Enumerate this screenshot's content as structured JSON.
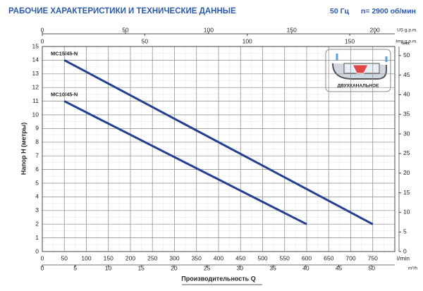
{
  "chart_data": {
    "type": "line",
    "title": "РАБОЧИЕ ХАРАКТЕРИСТИКИ И ТЕХНИЧЕСКИЕ ДАННЫЕ",
    "frequency": "50 Гц",
    "speed": "n= 2900 об/мин",
    "x_label": "Производительность Q",
    "y_label": "Напор H (метры)",
    "x_unit": "l/min",
    "inset_label": "ДВУХКАНАЛЬНОЕ",
    "xlim": [
      0,
      800
    ],
    "xticks": [
      0,
      50,
      100,
      150,
      200,
      250,
      300,
      350,
      400,
      450,
      500,
      550,
      600,
      650,
      700,
      750
    ],
    "ylim": [
      0,
      15
    ],
    "yticks": [
      0,
      1,
      2,
      3,
      4,
      5,
      6,
      7,
      8,
      9,
      10,
      11,
      12,
      13,
      14,
      15
    ],
    "grid": true,
    "series": [
      {
        "name": "MC15/45-N",
        "color": "#24408f",
        "x": [
          50,
          750
        ],
        "values": [
          14,
          2
        ]
      },
      {
        "name": "MC10/45-N",
        "color": "#24408f",
        "x": [
          50,
          600
        ],
        "values": [
          11,
          2
        ]
      }
    ],
    "secondary_axes": [
      {
        "unit": "US g.p.m.",
        "position": "top",
        "lim": [
          0,
          212
        ],
        "ticks": [
          0,
          50,
          100,
          150,
          200
        ]
      },
      {
        "unit": "Imp g.p.m.",
        "position": "top2",
        "lim": [
          0,
          172
        ],
        "ticks": [
          0,
          50,
          100,
          150
        ]
      },
      {
        "unit": "m³/h",
        "position": "bottom",
        "lim": [
          0,
          53.5
        ],
        "ticks": [
          0,
          5,
          10,
          15,
          20,
          25,
          30,
          35,
          40,
          45,
          50
        ]
      },
      {
        "unit": "feet",
        "position": "right",
        "lim": [
          0,
          52.3
        ],
        "ticks": [
          0,
          5,
          10,
          15,
          20,
          25,
          30,
          35,
          40,
          45,
          50
        ]
      }
    ]
  }
}
